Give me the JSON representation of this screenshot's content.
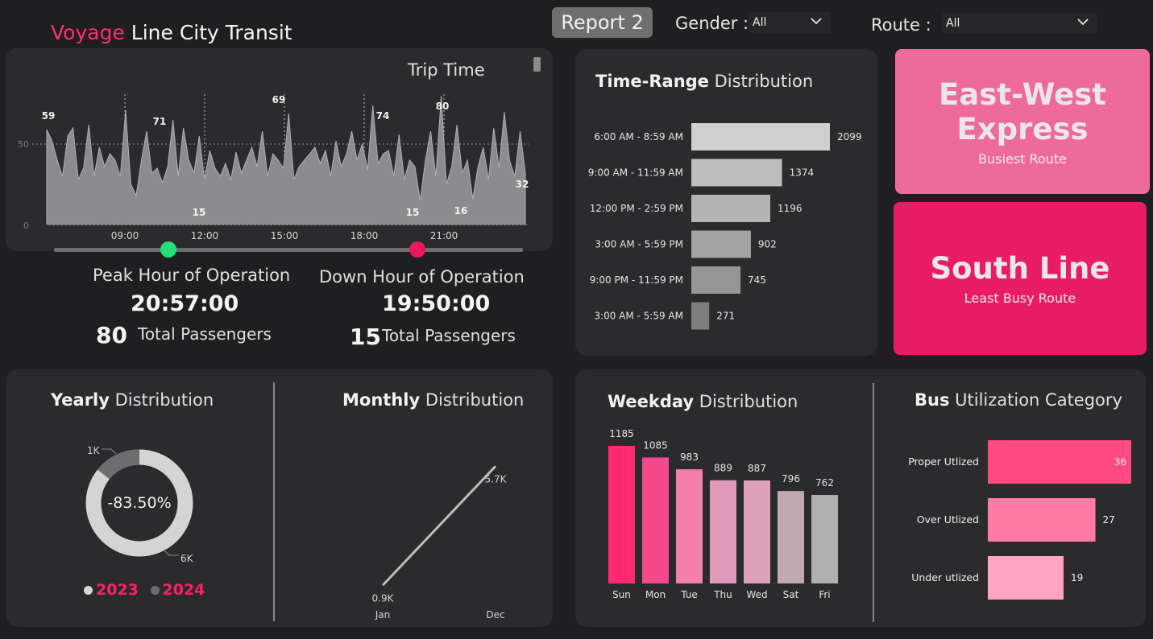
{
  "header": {
    "title_accent": "Voyage",
    "title_rest": " Line City Transit",
    "report_label": "Report 2",
    "gender_label": "Gender :",
    "gender_value": "All",
    "route_label": "Route :",
    "route_value": "All"
  },
  "trip_time": {
    "title": "Trip Time",
    "ytick_50": "50",
    "ytick_0": "0",
    "xticks": [
      "09:00",
      "12:00",
      "15:00",
      "18:00",
      "21:00"
    ],
    "peak_labels": [
      "59",
      "71",
      "69",
      "74",
      "80",
      "15",
      "15",
      "16",
      "32"
    ],
    "slider_colors": {
      "start": "#22e07a",
      "end": "#e8195e"
    }
  },
  "peak": {
    "label": "Peak Hour of Operation",
    "time": "20:57:00",
    "passengers": "80",
    "passengers_label": "Total Passengers"
  },
  "down": {
    "label": "Down Hour of Operation",
    "time": "19:50:00",
    "passengers": "15",
    "passengers_label": "Total Passengers"
  },
  "time_range": {
    "title_bold": "Time-Range",
    "title_rest": " Distribution",
    "chart_data": {
      "type": "bar",
      "categories": [
        "6:00 AM - 8:59 AM",
        "9:00 AM - 11:59 AM",
        "12:00 PM - 2:59 PM",
        "3:00 AM - 5:59 PM",
        "9:00 PM - 11:59 PM",
        "3:00 AM - 5:59 AM"
      ],
      "values": [
        2099,
        1374,
        1196,
        902,
        745,
        271
      ],
      "labels": [
        "2099",
        "1374",
        "1196",
        "902",
        "745",
        "271"
      ],
      "colors": [
        "#cfcfcf",
        "#bdbdbd",
        "#b3b3b3",
        "#a3a3a3",
        "#969696",
        "#7d7d7d"
      ]
    }
  },
  "cards": {
    "busiest_name": "East-West Express",
    "busiest_sub": "Busiest Route",
    "least_name": "South Line",
    "least_sub": "Least Busy Route"
  },
  "yearly": {
    "title_bold": "Yearly",
    "title_rest": " Distribution",
    "center": "-83.50%",
    "label_small": "1K",
    "label_large": "6K",
    "legend": [
      "2023",
      "2024"
    ],
    "chart_data": {
      "type": "pie",
      "categories": [
        "2023",
        "2024"
      ],
      "values": [
        6,
        1
      ]
    }
  },
  "monthly": {
    "title_bold": "Monthly",
    "title_rest": " Distribution",
    "chart_data": {
      "type": "line",
      "x": [
        "Jan",
        "Dec"
      ],
      "values": [
        0.9,
        5.7
      ],
      "labels": [
        "0.9K",
        "5.7K"
      ]
    }
  },
  "weekday": {
    "title_bold": "Weekday",
    "title_rest": " Distribution",
    "chart_data": {
      "type": "bar",
      "categories": [
        "Sun",
        "Mon",
        "Tue",
        "Thu",
        "Wed",
        "Sat",
        "Fri"
      ],
      "values": [
        1185,
        1085,
        983,
        889,
        887,
        796,
        762
      ],
      "labels": [
        "1185",
        "1085",
        "983",
        "889",
        "887",
        "796",
        "762"
      ],
      "colors": [
        "#ff2a72",
        "#f4498a",
        "#f47fa8",
        "#dd9bb7",
        "#dca0b7",
        "#c1a9b2",
        "#b0b0b0"
      ]
    }
  },
  "utilization": {
    "title_bold": "Bus",
    "title_rest": " Utilization Category",
    "chart_data": {
      "type": "bar",
      "categories": [
        "Proper Utlized",
        "Over Utlized",
        "Under utlized"
      ],
      "values": [
        36,
        27,
        19
      ],
      "labels": [
        "36",
        "27",
        "19"
      ],
      "colors": [
        "#ff4a80",
        "#ff7aa4",
        "#ffa4c2"
      ]
    }
  }
}
